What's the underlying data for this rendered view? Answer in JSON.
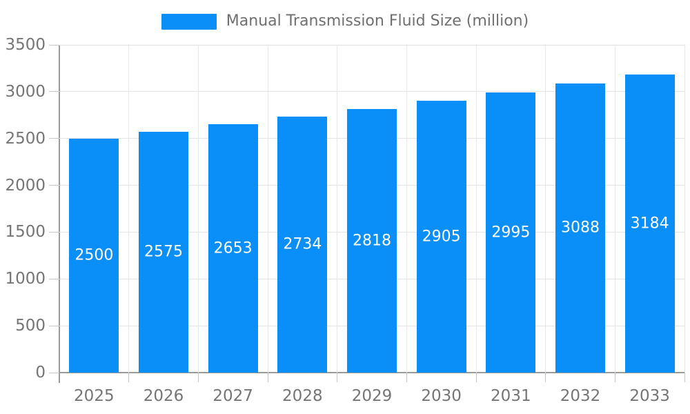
{
  "chart_data": {
    "type": "bar",
    "title": "Manual Transmission Fluid Size (million)",
    "categories": [
      "2025",
      "2026",
      "2027",
      "2028",
      "2029",
      "2030",
      "2031",
      "2032",
      "2033"
    ],
    "series": [
      {
        "name": "Manual Transmission Fluid Size (million)",
        "values": [
          2500,
          2575,
          2653,
          2734,
          2818,
          2905,
          2995,
          3088,
          3184
        ]
      }
    ],
    "xlabel": "",
    "ylabel": "",
    "ylim": [
      0,
      3500
    ],
    "yticks": [
      0,
      500,
      1000,
      1500,
      2000,
      2500,
      3000,
      3500
    ],
    "grid": true,
    "legend_position": "top-center",
    "value_labels_position": "inside-center"
  },
  "colors": {
    "bar": "#0A8FF9",
    "value_label_text": "#ffffff",
    "axis_line": "#9a9a9a",
    "gridline": "#e3e3e3",
    "tick_text": "#757575",
    "legend_text": "#6f6f6f",
    "background": "#ffffff"
  }
}
